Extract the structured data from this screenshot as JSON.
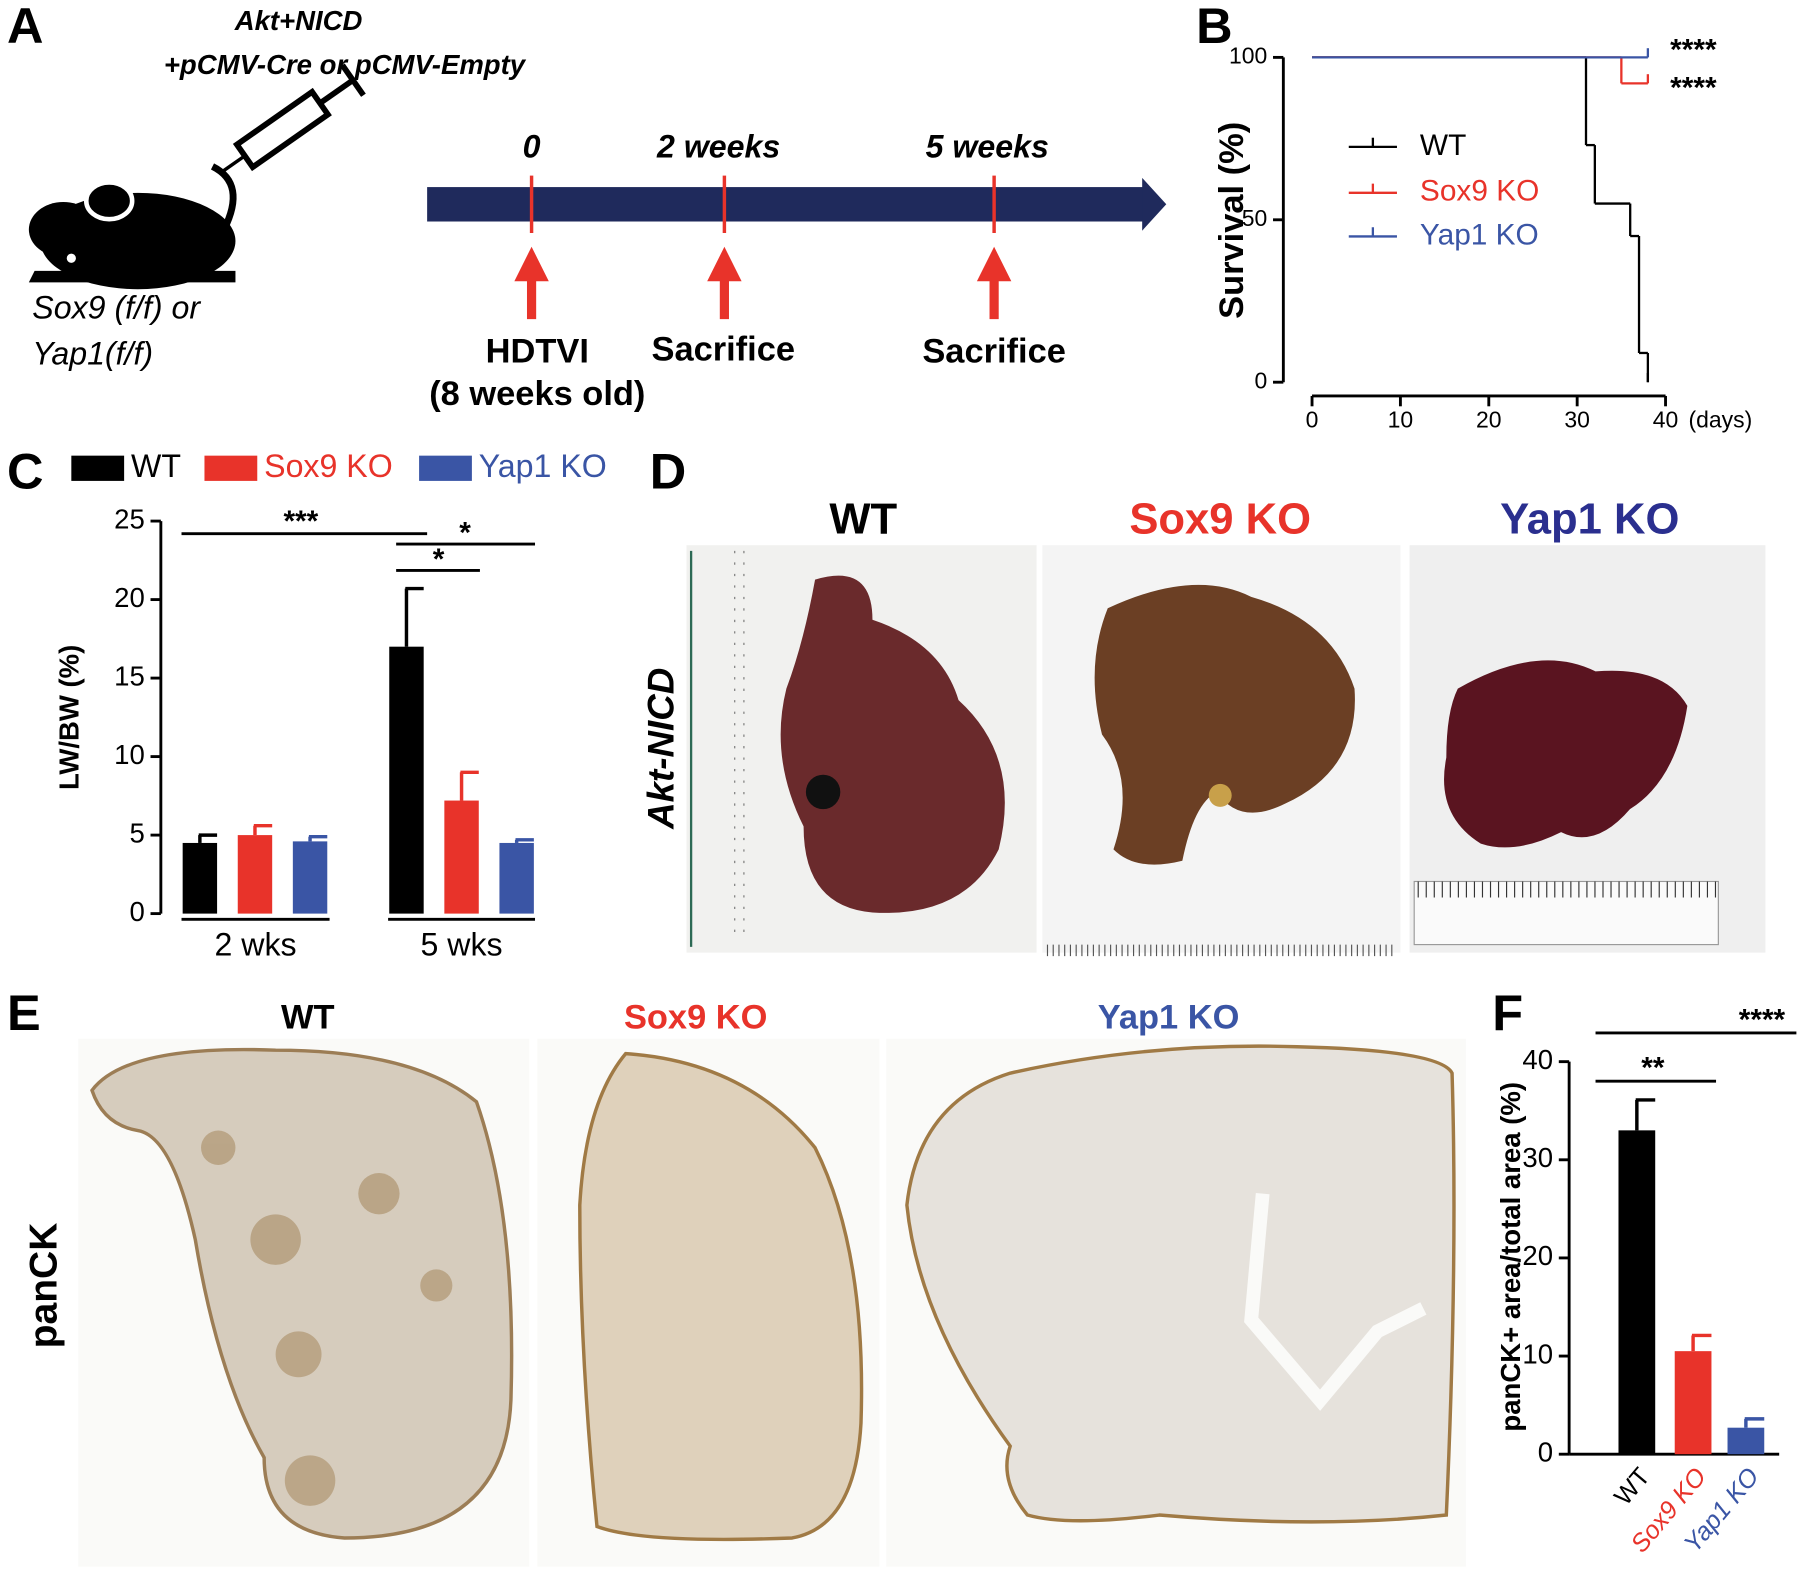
{
  "panel_a": {
    "letter": "A",
    "injection": "Akt+NICD",
    "vector": "+pCMV-Cre or pCMV-Empty",
    "mouse": [
      "Sox9 (f/f) or",
      "Yap1(f/f)"
    ],
    "timepoints": [
      "0",
      "2 weeks",
      "5 weeks"
    ],
    "events": [
      "HDTVI",
      "(8 weeks old)",
      "Sacrifice",
      "Sacrifice"
    ]
  },
  "panel_d": {
    "letter": "D",
    "columns": [
      "WT",
      "Sox9 KO",
      "Yap1 KO"
    ],
    "row": "Akt-NICD"
  },
  "panel_e": {
    "letter": "E",
    "columns": [
      "WT",
      "Sox9 KO",
      "Yap1 KO"
    ],
    "row": "panCK"
  },
  "chart_data": [
    {
      "type": "line",
      "panel_label": "B",
      "y_label": "Survival (%)",
      "x_label": "(days)",
      "xlim": [
        0,
        40
      ],
      "xticks": [
        0,
        10,
        20,
        30,
        40
      ],
      "ylim": [
        0,
        100
      ],
      "yticks": [
        0,
        50,
        100
      ],
      "series": [
        {
          "name": "WT",
          "color": "#000000",
          "x": [
            0,
            31,
            32,
            36,
            37,
            38
          ],
          "values": [
            100,
            73,
            55,
            45,
            9,
            0
          ]
        },
        {
          "name": "Sox9 KO",
          "color": "#e8332a",
          "x": [
            0,
            35,
            38
          ],
          "values": [
            100,
            92,
            92
          ]
        },
        {
          "name": "Yap1 KO",
          "color": "#3a55a5",
          "x": [
            0,
            38
          ],
          "values": [
            100,
            100
          ]
        }
      ],
      "annotations": [
        "****",
        "****"
      ]
    },
    {
      "type": "bar",
      "panel_label": "C",
      "y_label": "LW/BW (%)",
      "categories": [
        "2 wks",
        "5 wks"
      ],
      "ylim": [
        0,
        25
      ],
      "yticks": [
        0,
        5,
        10,
        15,
        20,
        25
      ],
      "legend": "top",
      "series": [
        {
          "name": "WT",
          "color": "#000000",
          "values": [
            4.5,
            17
          ],
          "errors": [
            0.5,
            3.7
          ]
        },
        {
          "name": "Sox9 KO",
          "color": "#e8332a",
          "values": [
            5,
            7.2
          ],
          "errors": [
            0.6,
            1.8
          ]
        },
        {
          "name": "Yap1 KO",
          "color": "#3a55a5",
          "values": [
            4.6,
            4.5
          ],
          "errors": [
            0.3,
            0.2
          ]
        }
      ],
      "annotations": [
        "***",
        "*",
        "*"
      ]
    },
    {
      "type": "bar",
      "panel_label": "F",
      "y_label": "panCK+ area/total area (%)",
      "categories": [
        "WT",
        "Sox9 KO",
        "Yap1 KO"
      ],
      "values": [
        33,
        10.5,
        2.7
      ],
      "errors": [
        3.1,
        1.6,
        0.9
      ],
      "colors": [
        "#000000",
        "#e8332a",
        "#3a55a5"
      ],
      "ylim": [
        0,
        40
      ],
      "yticks": [
        0,
        10,
        20,
        30,
        40
      ],
      "annotations": [
        "**",
        "****"
      ]
    }
  ]
}
